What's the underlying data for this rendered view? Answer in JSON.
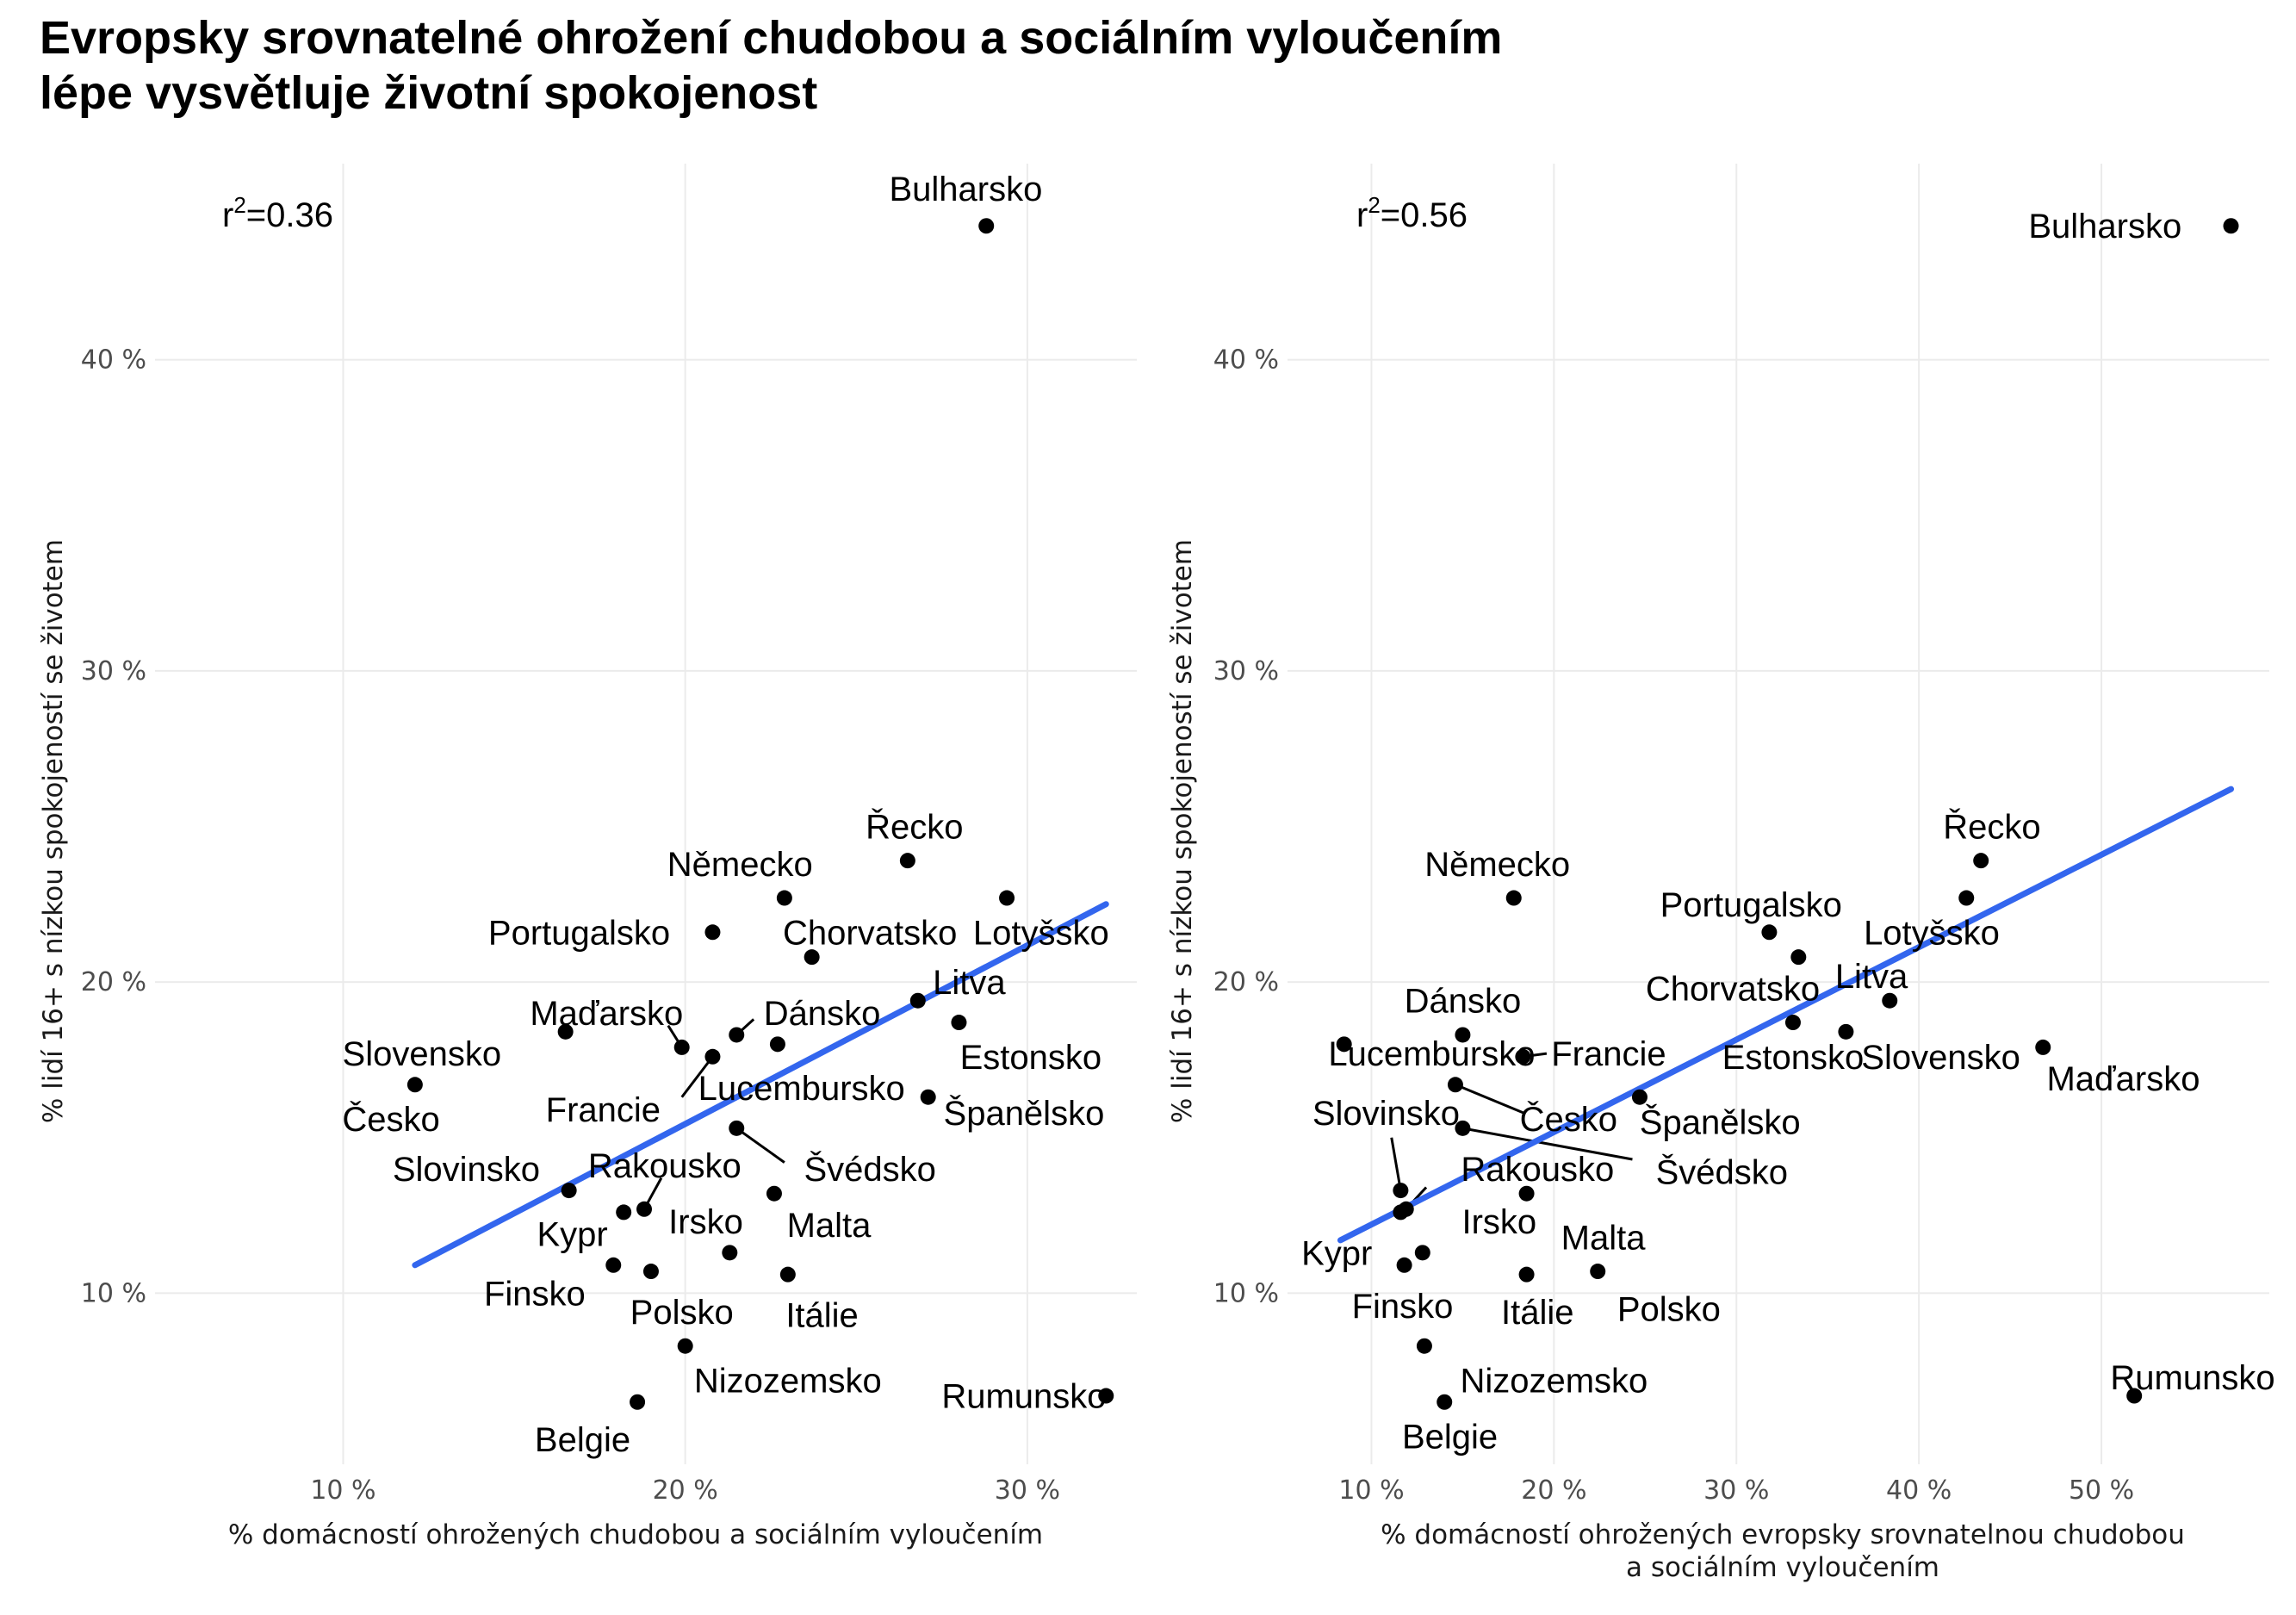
{
  "title": {
    "line1": "Evropsky srovnatelné ohrožení chudobou a sociálním vyloučením",
    "line2": "lépe vysvětluje životní spokojenost"
  },
  "chart_data": [
    {
      "type": "scatter",
      "r2_prefix": "r",
      "r2_sup": "2",
      "r2_value": "=0.36",
      "xlabel_lines": [
        "% domácností ohrožených chudobou a sociálním vyloučením"
      ],
      "ylabel": "% lidí 16+ s nízkou spokojeností se životem",
      "xlim": [
        4.5,
        33.2
      ],
      "ylim": [
        4.5,
        46.3
      ],
      "x_ticks": [
        {
          "value": 10,
          "label": "10 %"
        },
        {
          "value": 20,
          "label": "20 %"
        },
        {
          "value": 30,
          "label": "30 %"
        }
      ],
      "y_ticks": [
        {
          "value": 10,
          "label": "10 %"
        },
        {
          "value": 20,
          "label": "20 %"
        },
        {
          "value": 30,
          "label": "30 %"
        },
        {
          "value": 40,
          "label": "40 %"
        }
      ],
      "fit_line": {
        "x": [
          12.1,
          32.3
        ],
        "y": [
          10.9,
          22.5
        ]
      },
      "points": [
        {
          "name": "Bulharsko",
          "x": 28.8,
          "y": 44.3,
          "lx": 28.2,
          "ly": 45.5
        },
        {
          "name": "Řecko",
          "x": 26.5,
          "y": 23.9,
          "lx": 26.7,
          "ly": 25.0
        },
        {
          "name": "Německo",
          "x": 22.9,
          "y": 22.7,
          "lx": 21.6,
          "ly": 23.8
        },
        {
          "name": "Lotyšsko",
          "x": 29.4,
          "y": 22.7,
          "lx": 30.4,
          "ly": 21.6
        },
        {
          "name": "Portugalsko",
          "x": 20.8,
          "y": 21.6,
          "lx": 16.9,
          "ly": 21.6
        },
        {
          "name": "Chorvatsko",
          "x": 23.7,
          "y": 20.8,
          "lx": 25.4,
          "ly": 21.6
        },
        {
          "name": "Litva",
          "x": 26.8,
          "y": 19.4,
          "lx": 28.3,
          "ly": 20.0
        },
        {
          "name": "Estonsko",
          "x": 28.0,
          "y": 18.7,
          "lx": 30.1,
          "ly": 17.6
        },
        {
          "name": "Slovensko",
          "x": 16.5,
          "y": 18.4,
          "lx": 12.3,
          "ly": 17.7
        },
        {
          "name": "Maďarsko",
          "x": 19.9,
          "y": 17.9,
          "lx": 17.7,
          "ly": 19.0,
          "leader": [
            19.5,
            18.6,
            19.9,
            17.9
          ]
        },
        {
          "name": "Dánsko",
          "x": 21.5,
          "y": 18.3,
          "lx": 24.0,
          "ly": 19.0,
          "leader": [
            22.0,
            18.8,
            21.5,
            18.3
          ]
        },
        {
          "name": "Lucembursko",
          "x": 22.7,
          "y": 18.0,
          "lx": 23.4,
          "ly": 16.6
        },
        {
          "name": "Francie",
          "x": 20.8,
          "y": 17.6,
          "lx": 17.6,
          "ly": 15.9,
          "leader": [
            19.9,
            16.3,
            20.8,
            17.6
          ]
        },
        {
          "name": "Česko",
          "x": 12.1,
          "y": 16.7,
          "lx": 11.4,
          "ly": 15.6
        },
        {
          "name": "Španělsko",
          "x": 27.1,
          "y": 16.3,
          "lx": 29.9,
          "ly": 15.8
        },
        {
          "name": "Švédsko",
          "x": 21.5,
          "y": 15.3,
          "lx": 25.4,
          "ly": 14.0,
          "leader": [
            22.9,
            14.2,
            21.5,
            15.3
          ]
        },
        {
          "name": "Slovinsko",
          "x": 16.6,
          "y": 13.3,
          "lx": 13.6,
          "ly": 14.0
        },
        {
          "name": "Rakousko",
          "x": 18.8,
          "y": 12.7,
          "lx": 19.4,
          "ly": 14.1,
          "leader": [
            19.3,
            13.7,
            18.8,
            12.7
          ]
        },
        {
          "name": "Malta",
          "x": 22.6,
          "y": 13.2,
          "lx": 24.2,
          "ly": 12.2
        },
        {
          "name": "Kypr",
          "x": 18.2,
          "y": 12.6,
          "lx": 16.7,
          "ly": 11.9
        },
        {
          "name": "Irsko",
          "x": 21.3,
          "y": 11.3,
          "lx": 20.6,
          "ly": 12.3
        },
        {
          "name": "Finsko",
          "x": 17.9,
          "y": 10.9,
          "lx": 15.6,
          "ly": 10.0
        },
        {
          "name": "Polsko",
          "x": 19.0,
          "y": 10.7,
          "lx": 19.9,
          "ly": 9.4
        },
        {
          "name": "Itálie",
          "x": 23.0,
          "y": 10.6,
          "lx": 24.0,
          "ly": 9.3
        },
        {
          "name": "Nizozemsko",
          "x": 20.0,
          "y": 8.3,
          "lx": 23.0,
          "ly": 7.2
        },
        {
          "name": "Belgie",
          "x": 18.6,
          "y": 6.5,
          "lx": 17.0,
          "ly": 5.3
        },
        {
          "name": "Rumunsko",
          "x": 32.3,
          "y": 6.7,
          "lx": 29.9,
          "ly": 6.7
        }
      ]
    },
    {
      "type": "scatter",
      "r2_prefix": "r",
      "r2_sup": "2",
      "r2_value": "=0.56",
      "xlabel_lines": [
        "% domácností ohrožených evropsky srovnatelnou chudobou",
        "a sociálním vyloučením"
      ],
      "ylabel": "% lidí 16+ s nízkou spokojeností se životem",
      "xlim": [
        5.4,
        59.2
      ],
      "ylim": [
        4.5,
        46.3
      ],
      "x_ticks": [
        {
          "value": 10,
          "label": "10 %"
        },
        {
          "value": 20,
          "label": "20 %"
        },
        {
          "value": 30,
          "label": "30 %"
        },
        {
          "value": 40,
          "label": "40 %"
        },
        {
          "value": 50,
          "label": "50 %"
        }
      ],
      "y_ticks": [
        {
          "value": 10,
          "label": "10 %"
        },
        {
          "value": 20,
          "label": "20 %"
        },
        {
          "value": 30,
          "label": "30 %"
        },
        {
          "value": 40,
          "label": "40 %"
        }
      ],
      "fit_line": {
        "x": [
          8.3,
          57.1
        ],
        "y": [
          11.7,
          26.2
        ]
      },
      "points": [
        {
          "name": "Bulharsko",
          "x": 57.1,
          "y": 44.3,
          "lx": 50.2,
          "ly": 44.3
        },
        {
          "name": "Řecko",
          "x": 43.4,
          "y": 23.9,
          "lx": 44.0,
          "ly": 25.0
        },
        {
          "name": "Německo",
          "x": 17.8,
          "y": 22.7,
          "lx": 16.9,
          "ly": 23.8
        },
        {
          "name": "Portugalsko",
          "x": 31.8,
          "y": 21.6,
          "lx": 30.8,
          "ly": 22.5
        },
        {
          "name": "Lotyšsko",
          "x": 42.6,
          "y": 22.7,
          "lx": 40.7,
          "ly": 21.6
        },
        {
          "name": "Chorvatsko",
          "x": 33.4,
          "y": 20.8,
          "lx": 29.8,
          "ly": 19.8
        },
        {
          "name": "Litva",
          "x": 38.4,
          "y": 19.4,
          "lx": 37.4,
          "ly": 20.2
        },
        {
          "name": "Dánsko",
          "x": 15.0,
          "y": 18.3,
          "lx": 15.0,
          "ly": 19.4
        },
        {
          "name": "Estonsko",
          "x": 33.1,
          "y": 18.7,
          "lx": 33.1,
          "ly": 17.6
        },
        {
          "name": "Slovensko",
          "x": 36.0,
          "y": 18.4,
          "lx": 41.2,
          "ly": 17.6
        },
        {
          "name": "Maďarsko",
          "x": 46.8,
          "y": 17.9,
          "lx": 51.2,
          "ly": 16.9
        },
        {
          "name": "Lucembursko",
          "x": 8.5,
          "y": 18.0,
          "lx": 13.3,
          "ly": 17.7
        },
        {
          "name": "Francie",
          "x": 18.3,
          "y": 17.6,
          "lx": 23.0,
          "ly": 17.7,
          "leader": [
            19.6,
            17.7,
            18.3,
            17.6
          ]
        },
        {
          "name": "Česko",
          "x": 14.6,
          "y": 16.7,
          "lx": 20.8,
          "ly": 15.6,
          "leader": [
            18.3,
            15.8,
            14.6,
            16.7
          ]
        },
        {
          "name": "Španělsko",
          "x": 24.7,
          "y": 16.3,
          "lx": 29.1,
          "ly": 15.5
        },
        {
          "name": "Slovinsko",
          "x": 11.6,
          "y": 13.3,
          "lx": 10.8,
          "ly": 15.8,
          "leader": [
            11.1,
            15.0,
            11.6,
            13.3
          ]
        },
        {
          "name": "Švédsko",
          "x": 15.0,
          "y": 15.3,
          "lx": 29.2,
          "ly": 13.9,
          "leader": [
            24.3,
            14.3,
            15.0,
            15.3
          ]
        },
        {
          "name": "Rakousko",
          "x": 11.9,
          "y": 12.7,
          "lx": 19.1,
          "ly": 14.0,
          "leader": [
            13.0,
            13.4,
            11.9,
            12.7
          ]
        },
        {
          "name": "Malta",
          "x": 18.5,
          "y": 13.2,
          "lx": 22.7,
          "ly": 11.8
        },
        {
          "name": "Irsko",
          "x": 12.8,
          "y": 11.3,
          "lx": 17.0,
          "ly": 12.3
        },
        {
          "name": "Kypr",
          "x": 11.6,
          "y": 12.6,
          "lx": 8.1,
          "ly": 11.3
        },
        {
          "name": "Finsko",
          "x": 11.8,
          "y": 10.9,
          "lx": 11.7,
          "ly": 9.6
        },
        {
          "name": "Itálie",
          "x": 18.5,
          "y": 10.6,
          "lx": 19.1,
          "ly": 9.4
        },
        {
          "name": "Polsko",
          "x": 22.4,
          "y": 10.7,
          "lx": 26.3,
          "ly": 9.5
        },
        {
          "name": "Nizozemsko",
          "x": 12.9,
          "y": 8.3,
          "lx": 20.0,
          "ly": 7.2
        },
        {
          "name": "Belgie",
          "x": 14.0,
          "y": 6.5,
          "lx": 14.3,
          "ly": 5.4
        },
        {
          "name": "Rumunsko",
          "x": 51.8,
          "y": 6.7,
          "lx": 55.0,
          "ly": 7.3
        }
      ]
    }
  ]
}
